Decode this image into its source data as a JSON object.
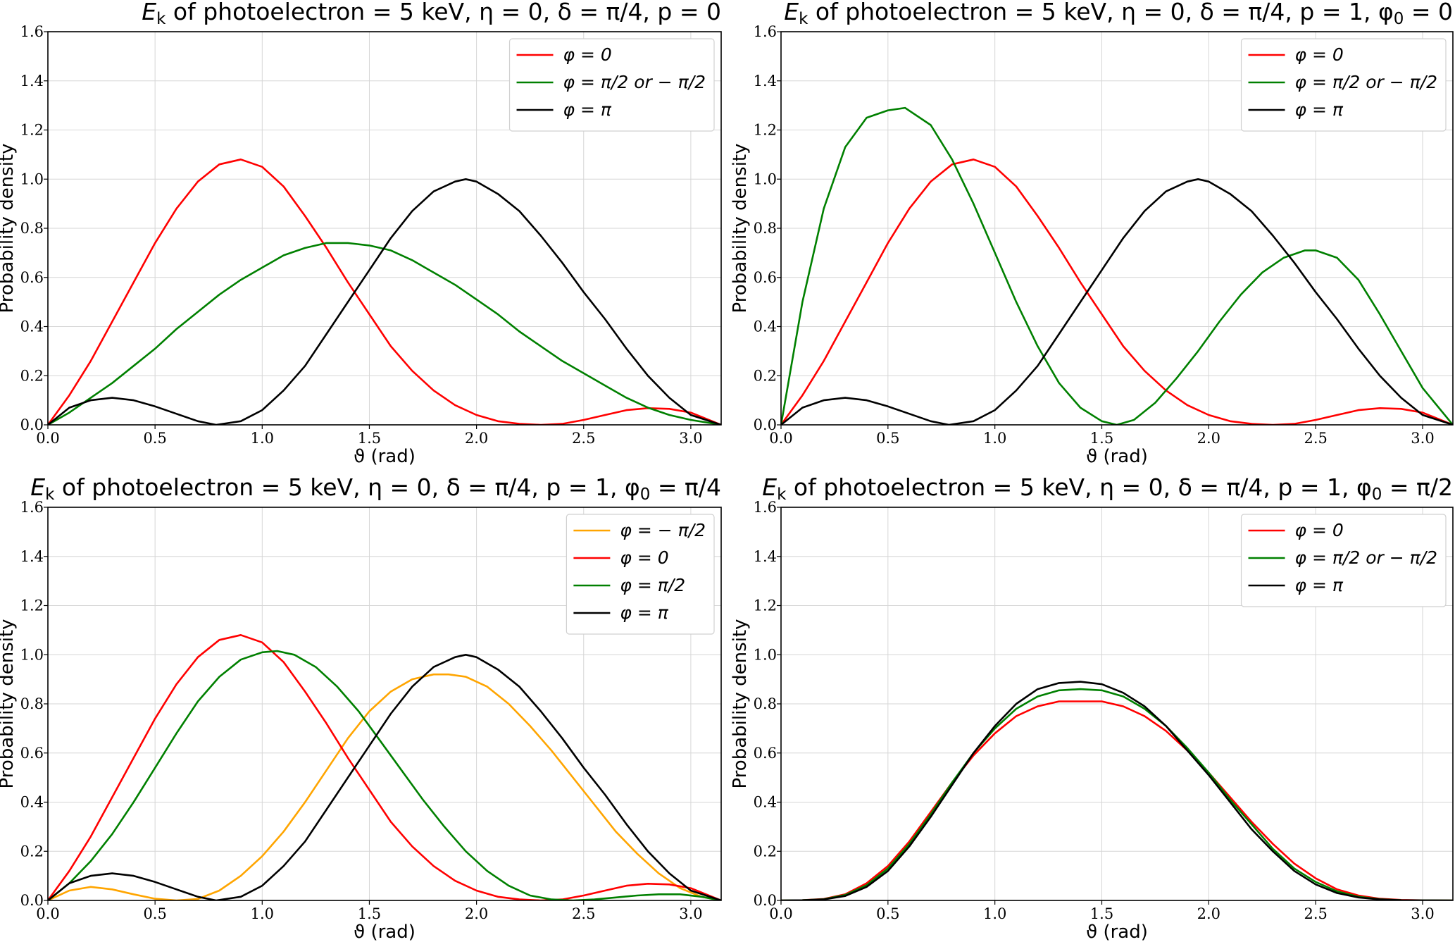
{
  "chart_data": [
    {
      "type": "line",
      "title": "E_k of photoelectron = 5 keV,  η = 0,  δ = π/4,  p = 0",
      "title_parts": {
        "main": "E",
        "sub": "k",
        "rest": " of photoelectron = 5 keV,  η = 0,  δ = π/4,  p = 0"
      },
      "xlabel": "ϑ (rad)",
      "ylabel": "Probability density",
      "xlim": [
        0,
        3.1416
      ],
      "ylim": [
        0,
        1.6
      ],
      "xticks": [
        "0.0",
        "0.5",
        "1.0",
        "1.5",
        "2.0",
        "2.5",
        "3.0"
      ],
      "yticks": [
        "0.0",
        "0.2",
        "0.4",
        "0.6",
        "0.8",
        "1.0",
        "1.2",
        "1.4",
        "1.6"
      ],
      "grid": true,
      "legend_position": "top-right",
      "series": [
        {
          "name": "φ = 0",
          "color": "#ff0000",
          "x": [
            0,
            0.1,
            0.2,
            0.3,
            0.4,
            0.5,
            0.6,
            0.7,
            0.8,
            0.9,
            1.0,
            1.1,
            1.2,
            1.3,
            1.4,
            1.5,
            1.6,
            1.7,
            1.8,
            1.9,
            2.0,
            2.1,
            2.2,
            2.3,
            2.4,
            2.5,
            2.6,
            2.7,
            2.8,
            2.9,
            3.0,
            3.1416
          ],
          "y": [
            0,
            0.12,
            0.26,
            0.42,
            0.58,
            0.74,
            0.88,
            0.99,
            1.06,
            1.08,
            1.05,
            0.97,
            0.85,
            0.72,
            0.58,
            0.45,
            0.32,
            0.22,
            0.14,
            0.08,
            0.04,
            0.015,
            0.004,
            0,
            0.004,
            0.02,
            0.04,
            0.06,
            0.068,
            0.065,
            0.05,
            0
          ]
        },
        {
          "name": "φ = π/2  or  − π/2",
          "color": "#008000",
          "x": [
            0,
            0.1,
            0.2,
            0.3,
            0.4,
            0.5,
            0.6,
            0.7,
            0.8,
            0.9,
            1.0,
            1.1,
            1.2,
            1.3,
            1.4,
            1.5,
            1.6,
            1.7,
            1.8,
            1.9,
            2.0,
            2.1,
            2.2,
            2.3,
            2.4,
            2.5,
            2.6,
            2.7,
            2.8,
            2.9,
            3.0,
            3.1416
          ],
          "y": [
            0,
            0.05,
            0.11,
            0.17,
            0.24,
            0.31,
            0.39,
            0.46,
            0.53,
            0.59,
            0.64,
            0.69,
            0.72,
            0.74,
            0.74,
            0.73,
            0.71,
            0.67,
            0.62,
            0.57,
            0.51,
            0.45,
            0.38,
            0.32,
            0.26,
            0.21,
            0.16,
            0.11,
            0.07,
            0.04,
            0.02,
            0
          ]
        },
        {
          "name": "φ = π",
          "color": "#000000",
          "x": [
            0,
            0.1,
            0.2,
            0.3,
            0.4,
            0.5,
            0.6,
            0.7,
            0.785,
            0.9,
            1.0,
            1.1,
            1.2,
            1.3,
            1.4,
            1.5,
            1.6,
            1.7,
            1.8,
            1.9,
            1.95,
            2.0,
            2.1,
            2.2,
            2.3,
            2.4,
            2.5,
            2.6,
            2.7,
            2.8,
            2.9,
            3.0,
            3.1416
          ],
          "y": [
            0,
            0.07,
            0.1,
            0.11,
            0.1,
            0.075,
            0.045,
            0.015,
            0,
            0.015,
            0.06,
            0.14,
            0.24,
            0.37,
            0.5,
            0.63,
            0.76,
            0.87,
            0.95,
            0.99,
            1.0,
            0.99,
            0.94,
            0.87,
            0.77,
            0.66,
            0.54,
            0.43,
            0.31,
            0.2,
            0.11,
            0.04,
            0
          ]
        }
      ]
    },
    {
      "type": "line",
      "title": "E_k of photoelectron = 5 keV,  η = 0,  δ = π/4,  p = 1,  φ0 = 0",
      "title_parts": {
        "main": "E",
        "sub": "k",
        "rest": " of photoelectron = 5 keV,  η = 0,  δ = π/4,  p = 1,  φ",
        "sub2": "0",
        "rest2": " = 0"
      },
      "xlabel": "ϑ (rad)",
      "ylabel": "Probability density",
      "xlim": [
        0,
        3.1416
      ],
      "ylim": [
        0,
        1.6
      ],
      "xticks": [
        "0.0",
        "0.5",
        "1.0",
        "1.5",
        "2.0",
        "2.5",
        "3.0"
      ],
      "yticks": [
        "0.0",
        "0.2",
        "0.4",
        "0.6",
        "0.8",
        "1.0",
        "1.2",
        "1.4",
        "1.6"
      ],
      "grid": true,
      "legend_position": "top-right",
      "series": [
        {
          "name": "φ = 0",
          "color": "#ff0000",
          "x": [
            0,
            0.1,
            0.2,
            0.3,
            0.4,
            0.5,
            0.6,
            0.7,
            0.8,
            0.9,
            1.0,
            1.1,
            1.2,
            1.3,
            1.4,
            1.5,
            1.6,
            1.7,
            1.8,
            1.9,
            2.0,
            2.1,
            2.2,
            2.3,
            2.4,
            2.5,
            2.6,
            2.7,
            2.8,
            2.9,
            3.0,
            3.1416
          ],
          "y": [
            0,
            0.12,
            0.26,
            0.42,
            0.58,
            0.74,
            0.88,
            0.99,
            1.06,
            1.08,
            1.05,
            0.97,
            0.85,
            0.72,
            0.58,
            0.45,
            0.32,
            0.22,
            0.14,
            0.08,
            0.04,
            0.015,
            0.004,
            0,
            0.004,
            0.02,
            0.04,
            0.06,
            0.068,
            0.065,
            0.05,
            0
          ]
        },
        {
          "name": "φ = π/2  or  − π/2",
          "color": "#008000",
          "x": [
            0,
            0.1,
            0.2,
            0.3,
            0.4,
            0.5,
            0.58,
            0.7,
            0.8,
            0.9,
            1.0,
            1.1,
            1.2,
            1.3,
            1.4,
            1.5,
            1.57,
            1.65,
            1.75,
            1.85,
            1.95,
            2.05,
            2.15,
            2.25,
            2.35,
            2.45,
            2.5,
            2.6,
            2.7,
            2.8,
            2.9,
            3.0,
            3.1416
          ],
          "y": [
            0,
            0.5,
            0.88,
            1.13,
            1.25,
            1.28,
            1.29,
            1.22,
            1.08,
            0.9,
            0.7,
            0.5,
            0.32,
            0.17,
            0.07,
            0.015,
            0,
            0.02,
            0.09,
            0.19,
            0.3,
            0.42,
            0.53,
            0.62,
            0.68,
            0.71,
            0.71,
            0.68,
            0.59,
            0.45,
            0.3,
            0.15,
            0
          ]
        },
        {
          "name": "φ = π",
          "color": "#000000",
          "x": [
            0,
            0.1,
            0.2,
            0.3,
            0.4,
            0.5,
            0.6,
            0.7,
            0.785,
            0.9,
            1.0,
            1.1,
            1.2,
            1.3,
            1.4,
            1.5,
            1.6,
            1.7,
            1.8,
            1.9,
            1.95,
            2.0,
            2.1,
            2.2,
            2.3,
            2.4,
            2.5,
            2.6,
            2.7,
            2.8,
            2.9,
            3.0,
            3.1416
          ],
          "y": [
            0,
            0.07,
            0.1,
            0.11,
            0.1,
            0.075,
            0.045,
            0.015,
            0,
            0.015,
            0.06,
            0.14,
            0.24,
            0.37,
            0.5,
            0.63,
            0.76,
            0.87,
            0.95,
            0.99,
            1.0,
            0.99,
            0.94,
            0.87,
            0.77,
            0.66,
            0.54,
            0.43,
            0.31,
            0.2,
            0.11,
            0.04,
            0
          ]
        }
      ]
    },
    {
      "type": "line",
      "title": "E_k of photoelectron = 5 keV,  η = 0,  δ = π/4,  p = 1,  φ0 = π/4",
      "title_parts": {
        "main": "E",
        "sub": "k",
        "rest": " of photoelectron = 5 keV,  η = 0,  δ = π/4,  p = 1,  φ",
        "sub2": "0",
        "rest2": " = π/4"
      },
      "xlabel": "ϑ (rad)",
      "ylabel": "Probability density",
      "xlim": [
        0,
        3.1416
      ],
      "ylim": [
        0,
        1.6
      ],
      "xticks": [
        "0.0",
        "0.5",
        "1.0",
        "1.5",
        "2.0",
        "2.5",
        "3.0"
      ],
      "yticks": [
        "0.0",
        "0.2",
        "0.4",
        "0.6",
        "0.8",
        "1.0",
        "1.2",
        "1.4",
        "1.6"
      ],
      "grid": true,
      "legend_position": "top-right",
      "series": [
        {
          "name": "φ = − π/2",
          "color": "#ffa500",
          "x": [
            0,
            0.1,
            0.2,
            0.3,
            0.4,
            0.5,
            0.6,
            0.7,
            0.8,
            0.9,
            1.0,
            1.1,
            1.2,
            1.3,
            1.4,
            1.5,
            1.6,
            1.7,
            1.8,
            1.87,
            1.95,
            2.05,
            2.15,
            2.25,
            2.35,
            2.45,
            2.55,
            2.65,
            2.75,
            2.85,
            2.95,
            3.05,
            3.1416
          ],
          "y": [
            0,
            0.04,
            0.055,
            0.045,
            0.025,
            0.007,
            0,
            0.006,
            0.04,
            0.1,
            0.18,
            0.28,
            0.4,
            0.53,
            0.66,
            0.77,
            0.85,
            0.9,
            0.92,
            0.92,
            0.91,
            0.87,
            0.8,
            0.71,
            0.61,
            0.5,
            0.39,
            0.28,
            0.19,
            0.11,
            0.05,
            0.015,
            0
          ]
        },
        {
          "name": "φ = 0",
          "color": "#ff0000",
          "x": [
            0,
            0.1,
            0.2,
            0.3,
            0.4,
            0.5,
            0.6,
            0.7,
            0.8,
            0.9,
            1.0,
            1.1,
            1.2,
            1.3,
            1.4,
            1.5,
            1.6,
            1.7,
            1.8,
            1.9,
            2.0,
            2.1,
            2.2,
            2.3,
            2.4,
            2.5,
            2.6,
            2.7,
            2.8,
            2.9,
            3.0,
            3.1416
          ],
          "y": [
            0,
            0.12,
            0.26,
            0.42,
            0.58,
            0.74,
            0.88,
            0.99,
            1.06,
            1.08,
            1.05,
            0.97,
            0.85,
            0.72,
            0.58,
            0.45,
            0.32,
            0.22,
            0.14,
            0.08,
            0.04,
            0.015,
            0.004,
            0,
            0.004,
            0.02,
            0.04,
            0.06,
            0.068,
            0.065,
            0.05,
            0
          ]
        },
        {
          "name": "φ = π/2",
          "color": "#008000",
          "x": [
            0,
            0.1,
            0.2,
            0.3,
            0.4,
            0.5,
            0.6,
            0.7,
            0.8,
            0.9,
            1.0,
            1.07,
            1.15,
            1.25,
            1.35,
            1.45,
            1.55,
            1.65,
            1.75,
            1.85,
            1.95,
            2.05,
            2.15,
            2.25,
            2.35,
            2.45,
            2.55,
            2.65,
            2.75,
            2.85,
            2.95,
            3.05,
            3.1416
          ],
          "y": [
            0,
            0.07,
            0.16,
            0.27,
            0.4,
            0.54,
            0.68,
            0.81,
            0.91,
            0.98,
            1.01,
            1.015,
            1.0,
            0.95,
            0.87,
            0.77,
            0.65,
            0.53,
            0.41,
            0.3,
            0.2,
            0.12,
            0.06,
            0.02,
            0.004,
            0,
            0.004,
            0.012,
            0.02,
            0.025,
            0.025,
            0.015,
            0
          ]
        },
        {
          "name": "φ = π",
          "color": "#000000",
          "x": [
            0,
            0.1,
            0.2,
            0.3,
            0.4,
            0.5,
            0.6,
            0.7,
            0.785,
            0.9,
            1.0,
            1.1,
            1.2,
            1.3,
            1.4,
            1.5,
            1.6,
            1.7,
            1.8,
            1.9,
            1.95,
            2.0,
            2.1,
            2.2,
            2.3,
            2.4,
            2.5,
            2.6,
            2.7,
            2.8,
            2.9,
            3.0,
            3.1416
          ],
          "y": [
            0,
            0.07,
            0.1,
            0.11,
            0.1,
            0.075,
            0.045,
            0.015,
            0,
            0.015,
            0.06,
            0.14,
            0.24,
            0.37,
            0.5,
            0.63,
            0.76,
            0.87,
            0.95,
            0.99,
            1.0,
            0.99,
            0.94,
            0.87,
            0.77,
            0.66,
            0.54,
            0.43,
            0.31,
            0.2,
            0.11,
            0.04,
            0
          ]
        }
      ]
    },
    {
      "type": "line",
      "title": "E_k of photoelectron = 5 keV,  η = 0,  δ = π/4,  p = 1,  φ0 = π/2",
      "title_parts": {
        "main": "E",
        "sub": "k",
        "rest": " of photoelectron = 5 keV,  η = 0,  δ = π/4,  p = 1,  φ",
        "sub2": "0",
        "rest2": " = π/2"
      },
      "xlabel": "ϑ (rad)",
      "ylabel": "Probability density",
      "xlim": [
        0,
        3.1416
      ],
      "ylim": [
        0,
        1.6
      ],
      "xticks": [
        "0.0",
        "0.5",
        "1.0",
        "1.5",
        "2.0",
        "2.5",
        "3.0"
      ],
      "yticks": [
        "0.0",
        "0.2",
        "0.4",
        "0.6",
        "0.8",
        "1.0",
        "1.2",
        "1.4",
        "1.6"
      ],
      "grid": true,
      "legend_position": "top-right",
      "series": [
        {
          "name": "φ = 0",
          "color": "#ff0000",
          "x": [
            0,
            0.1,
            0.2,
            0.3,
            0.4,
            0.5,
            0.6,
            0.7,
            0.8,
            0.9,
            1.0,
            1.1,
            1.2,
            1.3,
            1.4,
            1.5,
            1.6,
            1.7,
            1.8,
            1.9,
            2.0,
            2.1,
            2.2,
            2.3,
            2.4,
            2.5,
            2.6,
            2.7,
            2.8,
            2.9,
            3.0,
            3.1416
          ],
          "y": [
            0,
            0.001,
            0.006,
            0.025,
            0.07,
            0.14,
            0.24,
            0.36,
            0.48,
            0.59,
            0.68,
            0.75,
            0.79,
            0.81,
            0.81,
            0.81,
            0.79,
            0.75,
            0.69,
            0.61,
            0.52,
            0.42,
            0.32,
            0.23,
            0.15,
            0.09,
            0.045,
            0.02,
            0.007,
            0.002,
            0.0005,
            0
          ]
        },
        {
          "name": "φ = π/2  or  − π/2",
          "color": "#008000",
          "x": [
            0,
            0.1,
            0.2,
            0.3,
            0.4,
            0.5,
            0.6,
            0.7,
            0.8,
            0.9,
            1.0,
            1.1,
            1.2,
            1.3,
            1.4,
            1.5,
            1.6,
            1.7,
            1.8,
            1.9,
            2.0,
            2.1,
            2.2,
            2.3,
            2.4,
            2.5,
            2.6,
            2.7,
            2.8,
            2.9,
            3.0,
            3.1416
          ],
          "y": [
            0,
            0.001,
            0.005,
            0.022,
            0.062,
            0.13,
            0.23,
            0.35,
            0.48,
            0.6,
            0.7,
            0.78,
            0.83,
            0.855,
            0.86,
            0.855,
            0.83,
            0.78,
            0.71,
            0.62,
            0.52,
            0.41,
            0.31,
            0.21,
            0.13,
            0.075,
            0.037,
            0.015,
            0.005,
            0.001,
            0.0003,
            0
          ]
        },
        {
          "name": "φ = π",
          "color": "#000000",
          "x": [
            0,
            0.1,
            0.2,
            0.3,
            0.4,
            0.5,
            0.6,
            0.7,
            0.8,
            0.9,
            1.0,
            1.1,
            1.2,
            1.3,
            1.4,
            1.5,
            1.6,
            1.7,
            1.8,
            1.9,
            2.0,
            2.1,
            2.2,
            2.3,
            2.4,
            2.5,
            2.6,
            2.7,
            2.8,
            2.9,
            3.0,
            3.1416
          ],
          "y": [
            0,
            0.0008,
            0.004,
            0.018,
            0.055,
            0.12,
            0.22,
            0.34,
            0.47,
            0.6,
            0.71,
            0.8,
            0.86,
            0.885,
            0.89,
            0.88,
            0.845,
            0.79,
            0.71,
            0.61,
            0.51,
            0.4,
            0.29,
            0.2,
            0.12,
            0.065,
            0.03,
            0.012,
            0.004,
            0.001,
            0.0002,
            0
          ]
        }
      ]
    }
  ]
}
